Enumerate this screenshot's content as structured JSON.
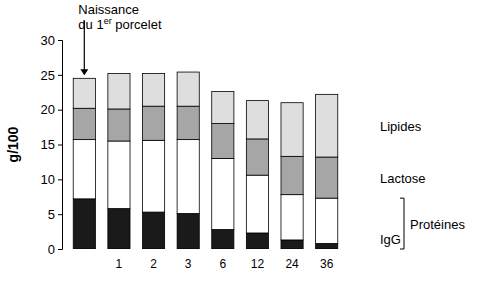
{
  "chart_data": {
    "type": "bar",
    "stacked": true,
    "y_label": "g/100",
    "annotations": [
      "Naissance du 1er porcelet"
    ],
    "categories": [
      null,
      "1",
      "2",
      "3",
      "6",
      "12",
      "24",
      "36"
    ],
    "series": [
      {
        "name": "IgG",
        "color": "#1a1a1a",
        "values": [
          7.2,
          5.8,
          5.3,
          5.1,
          2.8,
          2.3,
          1.3,
          0.8
        ]
      },
      {
        "name": "Protéines",
        "color": "#ffffff",
        "values": [
          8.5,
          9.7,
          10.3,
          10.6,
          10.2,
          8.3,
          6.5,
          6.5
        ]
      },
      {
        "name": "Lactose",
        "color": "#a6a6a6",
        "values": [
          4.5,
          4.6,
          4.9,
          4.8,
          5.0,
          5.2,
          5.5,
          5.9
        ]
      },
      {
        "name": "Lipides",
        "color": "#dedede",
        "values": [
          4.3,
          5.1,
          4.7,
          4.9,
          4.6,
          5.5,
          7.7,
          9.0
        ]
      }
    ],
    "ylim": [
      0,
      30
    ],
    "yticks": [
      0,
      5,
      10,
      15,
      20,
      25,
      30
    ],
    "grid": false
  }
}
